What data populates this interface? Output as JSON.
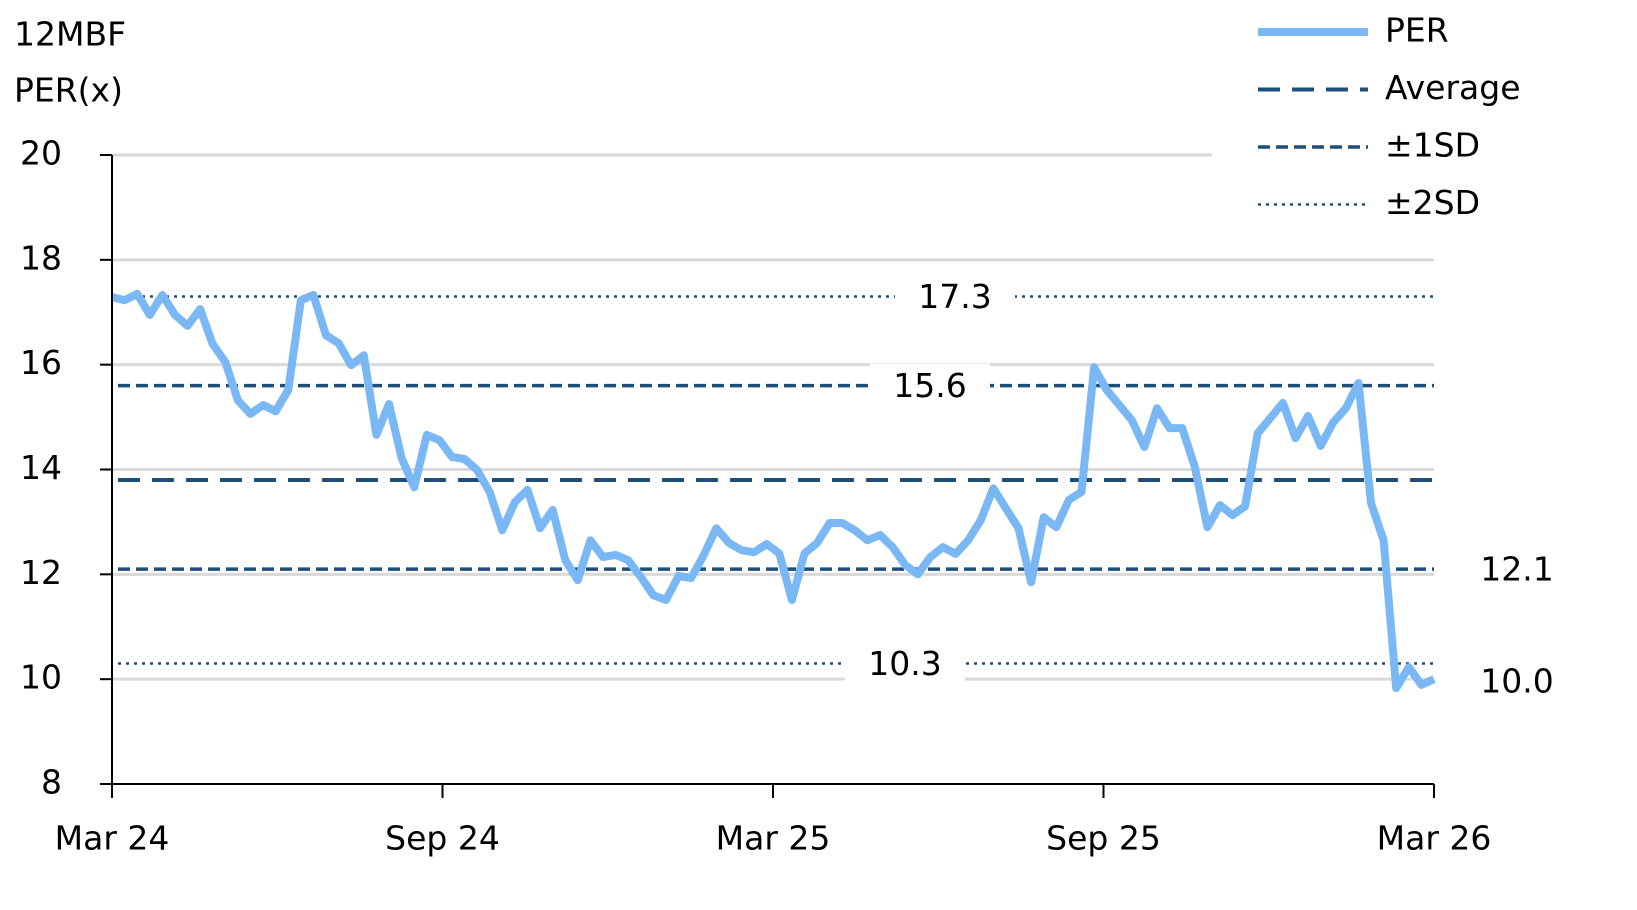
{
  "chart_data": {
    "type": "line",
    "ylabel": [
      "12MBF",
      "PER(x)"
    ],
    "ylim": [
      8,
      20
    ],
    "yticks": [
      8,
      10,
      12,
      14,
      16,
      18,
      20
    ],
    "xlim": [
      0,
      24
    ],
    "xticks": [
      {
        "value": 0,
        "label": "Mar 24"
      },
      {
        "value": 6,
        "label": "Sep 24"
      },
      {
        "value": 12,
        "label": "Mar 25"
      },
      {
        "value": 18,
        "label": "Sep 25"
      },
      {
        "value": 24,
        "label": "Mar 26"
      }
    ],
    "grid": true,
    "legend": "top-right",
    "series": [
      {
        "name": "PER",
        "color": "#7ab8f5",
        "style": "solid",
        "values": [
          17.29,
          17.23,
          17.35,
          16.95,
          17.33,
          16.95,
          16.74,
          17.06,
          16.39,
          16.05,
          15.32,
          15.06,
          15.23,
          15.11,
          15.52,
          17.23,
          17.33,
          16.56,
          16.41,
          15.99,
          16.18,
          14.66,
          15.25,
          14.22,
          13.66,
          14.66,
          14.56,
          14.24,
          14.2,
          13.99,
          13.57,
          12.84,
          13.38,
          13.61,
          12.88,
          13.23,
          12.27,
          11.89,
          12.65,
          12.33,
          12.37,
          12.27,
          11.95,
          11.6,
          11.51,
          11.97,
          11.93,
          12.37,
          12.88,
          12.6,
          12.46,
          12.42,
          12.58,
          12.4,
          11.51,
          12.4,
          12.6,
          12.98,
          12.98,
          12.84,
          12.65,
          12.75,
          12.52,
          12.18,
          12.0,
          12.33,
          12.52,
          12.39,
          12.65,
          13.03,
          13.64,
          13.26,
          12.88,
          11.85,
          13.09,
          12.9,
          13.42,
          13.57,
          15.95,
          15.52,
          15.23,
          14.94,
          14.43,
          15.17,
          14.79,
          14.79,
          14.05,
          12.9,
          13.32,
          13.13,
          13.3,
          14.69,
          14.98,
          15.27,
          14.6,
          15.02,
          14.45,
          14.9,
          15.17,
          15.65,
          13.36,
          12.65,
          9.83,
          10.23,
          9.89,
          10.0
        ],
        "value_labels": [
          null,
          null,
          null,
          null,
          null,
          null,
          null,
          null,
          null,
          null,
          null,
          null,
          null,
          null,
          null,
          null,
          null,
          null,
          null,
          null,
          null,
          null,
          null,
          null,
          null,
          null,
          null,
          null,
          null,
          null,
          null,
          null,
          null,
          null,
          null,
          null,
          null,
          null,
          null,
          null,
          null,
          null,
          null,
          null,
          null,
          null,
          null,
          null,
          null,
          null,
          null,
          null,
          null,
          null,
          null,
          null,
          null,
          null,
          null,
          null,
          null,
          null,
          null,
          null,
          null,
          null,
          null,
          null,
          null,
          null,
          null,
          null,
          null,
          null,
          null,
          null,
          null,
          null,
          null,
          null,
          null,
          null,
          null,
          null,
          null,
          null,
          null,
          null,
          null,
          null,
          null,
          null,
          null,
          null,
          null,
          null,
          null,
          null,
          null,
          null,
          null,
          null,
          null,
          null,
          null,
          "10.0"
        ]
      },
      {
        "name": "Average",
        "color": "#1f4e79",
        "style": "dashed",
        "levels": [
          13.8
        ]
      },
      {
        "name": "±1SD",
        "color": "#1f4e79",
        "style": "short-dashed",
        "levels": [
          15.6,
          12.1
        ]
      },
      {
        "name": "±2SD",
        "color": "#1f4e79",
        "style": "dotted",
        "levels": [
          17.3,
          10.3
        ]
      }
    ]
  }
}
